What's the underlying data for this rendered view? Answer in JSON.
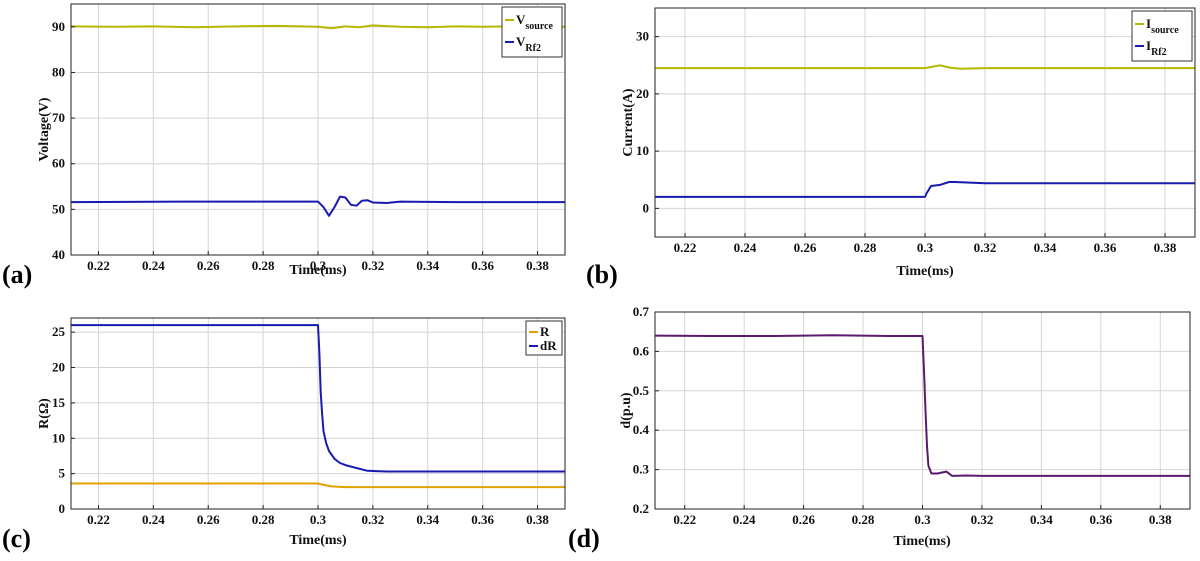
{
  "figure": {
    "panel_letters": [
      "(a)",
      "(b)",
      "(c)",
      "(d)"
    ]
  },
  "chart_data": [
    {
      "id": "a",
      "type": "line",
      "xlabel": "Time(ms)",
      "ylabel": "Voltage(V)",
      "xlim": [
        0.21,
        0.39
      ],
      "ylim": [
        40,
        95
      ],
      "xticks": [
        0.22,
        0.24,
        0.26,
        0.28,
        0.3,
        0.32,
        0.34,
        0.36,
        0.38
      ],
      "xtick_labels": [
        "0.22",
        "0.24",
        "0.26",
        "0.28",
        "0.3",
        "0.32",
        "0.34",
        "0.36",
        "0.38"
      ],
      "yticks": [
        40,
        50,
        60,
        70,
        80,
        90
      ],
      "ytick_labels": [
        "40",
        "50",
        "60",
        "70",
        "80",
        "90"
      ],
      "grid": true,
      "legend": "top-right",
      "series": [
        {
          "name": "V",
          "sub": "source",
          "color": "#b5b800",
          "x": [
            0.21,
            0.225,
            0.24,
            0.255,
            0.27,
            0.285,
            0.3,
            0.305,
            0.31,
            0.315,
            0.32,
            0.33,
            0.34,
            0.35,
            0.36,
            0.37,
            0.38,
            0.39
          ],
          "y": [
            90.1,
            90.0,
            90.1,
            89.9,
            90.1,
            90.2,
            90.0,
            89.7,
            90.1,
            89.9,
            90.3,
            90.0,
            89.9,
            90.1,
            90.0,
            90.1,
            89.9,
            90.0
          ]
        },
        {
          "name": "V",
          "sub": "Rf2",
          "color": "#1a1ab0",
          "x": [
            0.21,
            0.25,
            0.29,
            0.3,
            0.302,
            0.304,
            0.306,
            0.308,
            0.31,
            0.312,
            0.314,
            0.316,
            0.318,
            0.32,
            0.325,
            0.33,
            0.35,
            0.39
          ],
          "y": [
            51.6,
            51.7,
            51.7,
            51.7,
            50.5,
            48.6,
            50.5,
            52.8,
            52.6,
            51.0,
            50.8,
            51.9,
            52.0,
            51.5,
            51.4,
            51.7,
            51.6,
            51.6
          ]
        }
      ]
    },
    {
      "id": "b",
      "type": "line",
      "xlabel": "Time(ms)",
      "ylabel": "Current(A)",
      "xlim": [
        0.21,
        0.39
      ],
      "ylim": [
        -5,
        35
      ],
      "xticks": [
        0.22,
        0.24,
        0.26,
        0.28,
        0.3,
        0.32,
        0.34,
        0.36,
        0.38
      ],
      "xtick_labels": [
        "0.22",
        "0.24",
        "0.26",
        "0.28",
        "0.3",
        "0.32",
        "0.34",
        "0.36",
        "0.38"
      ],
      "yticks": [
        0,
        10,
        20,
        30
      ],
      "ytick_labels": [
        "0",
        "10",
        "20",
        "30"
      ],
      "grid": true,
      "legend": "top-right",
      "series": [
        {
          "name": "I",
          "sub": "source",
          "color": "#b5b800",
          "x": [
            0.21,
            0.25,
            0.3,
            0.302,
            0.305,
            0.308,
            0.312,
            0.32,
            0.35,
            0.39
          ],
          "y": [
            24.5,
            24.5,
            24.5,
            24.7,
            25.0,
            24.6,
            24.4,
            24.5,
            24.5,
            24.5
          ]
        },
        {
          "name": "I",
          "sub": "Rf2",
          "color": "#1a1ab0",
          "x": [
            0.21,
            0.25,
            0.3,
            0.3005,
            0.302,
            0.305,
            0.308,
            0.31,
            0.315,
            0.32,
            0.35,
            0.39
          ],
          "y": [
            2.0,
            2.0,
            2.0,
            2.6,
            3.9,
            4.1,
            4.6,
            4.6,
            4.5,
            4.4,
            4.4,
            4.4
          ]
        }
      ]
    },
    {
      "id": "c",
      "type": "line",
      "xlabel": "Time(ms)",
      "ylabel": "R(Ω)",
      "xlim": [
        0.21,
        0.39
      ],
      "ylim": [
        0,
        27
      ],
      "xticks": [
        0.22,
        0.24,
        0.26,
        0.28,
        0.3,
        0.32,
        0.34,
        0.36,
        0.38
      ],
      "xtick_labels": [
        "0.22",
        "0.24",
        "0.26",
        "0.28",
        "0.3",
        "0.32",
        "0.34",
        "0.36",
        "0.38"
      ],
      "yticks": [
        0,
        5,
        10,
        15,
        20,
        25
      ],
      "ytick_labels": [
        "0",
        "5",
        "10",
        "15",
        "20",
        "25"
      ],
      "grid": true,
      "legend": "top-right",
      "series": [
        {
          "name": "R",
          "sub": "",
          "color": "#e0a000",
          "x": [
            0.21,
            0.25,
            0.3,
            0.302,
            0.305,
            0.31,
            0.32,
            0.35,
            0.39
          ],
          "y": [
            3.6,
            3.6,
            3.6,
            3.4,
            3.2,
            3.1,
            3.1,
            3.1,
            3.1
          ]
        },
        {
          "name": "dR",
          "sub": "",
          "color": "#1a1ab0",
          "x": [
            0.21,
            0.25,
            0.3,
            0.3005,
            0.301,
            0.3015,
            0.302,
            0.303,
            0.304,
            0.306,
            0.308,
            0.31,
            0.314,
            0.318,
            0.325,
            0.35,
            0.39
          ],
          "y": [
            26.0,
            26.0,
            26.0,
            22.0,
            16.5,
            13.5,
            11.0,
            9.3,
            8.2,
            7.1,
            6.5,
            6.2,
            5.8,
            5.4,
            5.3,
            5.3,
            5.3
          ]
        }
      ]
    },
    {
      "id": "d",
      "type": "line",
      "xlabel": "Time(ms)",
      "ylabel": "d(p.u)",
      "xlim": [
        0.21,
        0.39
      ],
      "ylim": [
        0.2,
        0.7
      ],
      "xticks": [
        0.22,
        0.24,
        0.26,
        0.28,
        0.3,
        0.32,
        0.34,
        0.36,
        0.38
      ],
      "xtick_labels": [
        "0.22",
        "0.24",
        "0.26",
        "0.28",
        "0.3",
        "0.32",
        "0.34",
        "0.36",
        "0.38"
      ],
      "yticks": [
        0.2,
        0.3,
        0.4,
        0.5,
        0.6,
        0.7
      ],
      "ytick_labels": [
        "0.2",
        "0.3",
        "0.4",
        "0.5",
        "0.6",
        "0.7"
      ],
      "grid": true,
      "legend": "none",
      "series": [
        {
          "name": "d",
          "sub": "",
          "color": "#5a1a6e",
          "x": [
            0.21,
            0.23,
            0.25,
            0.27,
            0.29,
            0.3,
            0.3005,
            0.301,
            0.3015,
            0.302,
            0.303,
            0.305,
            0.308,
            0.31,
            0.315,
            0.32,
            0.35,
            0.39
          ],
          "y": [
            0.64,
            0.639,
            0.639,
            0.641,
            0.639,
            0.639,
            0.55,
            0.45,
            0.36,
            0.31,
            0.29,
            0.29,
            0.295,
            0.284,
            0.285,
            0.284,
            0.284,
            0.284
          ]
        }
      ]
    }
  ]
}
